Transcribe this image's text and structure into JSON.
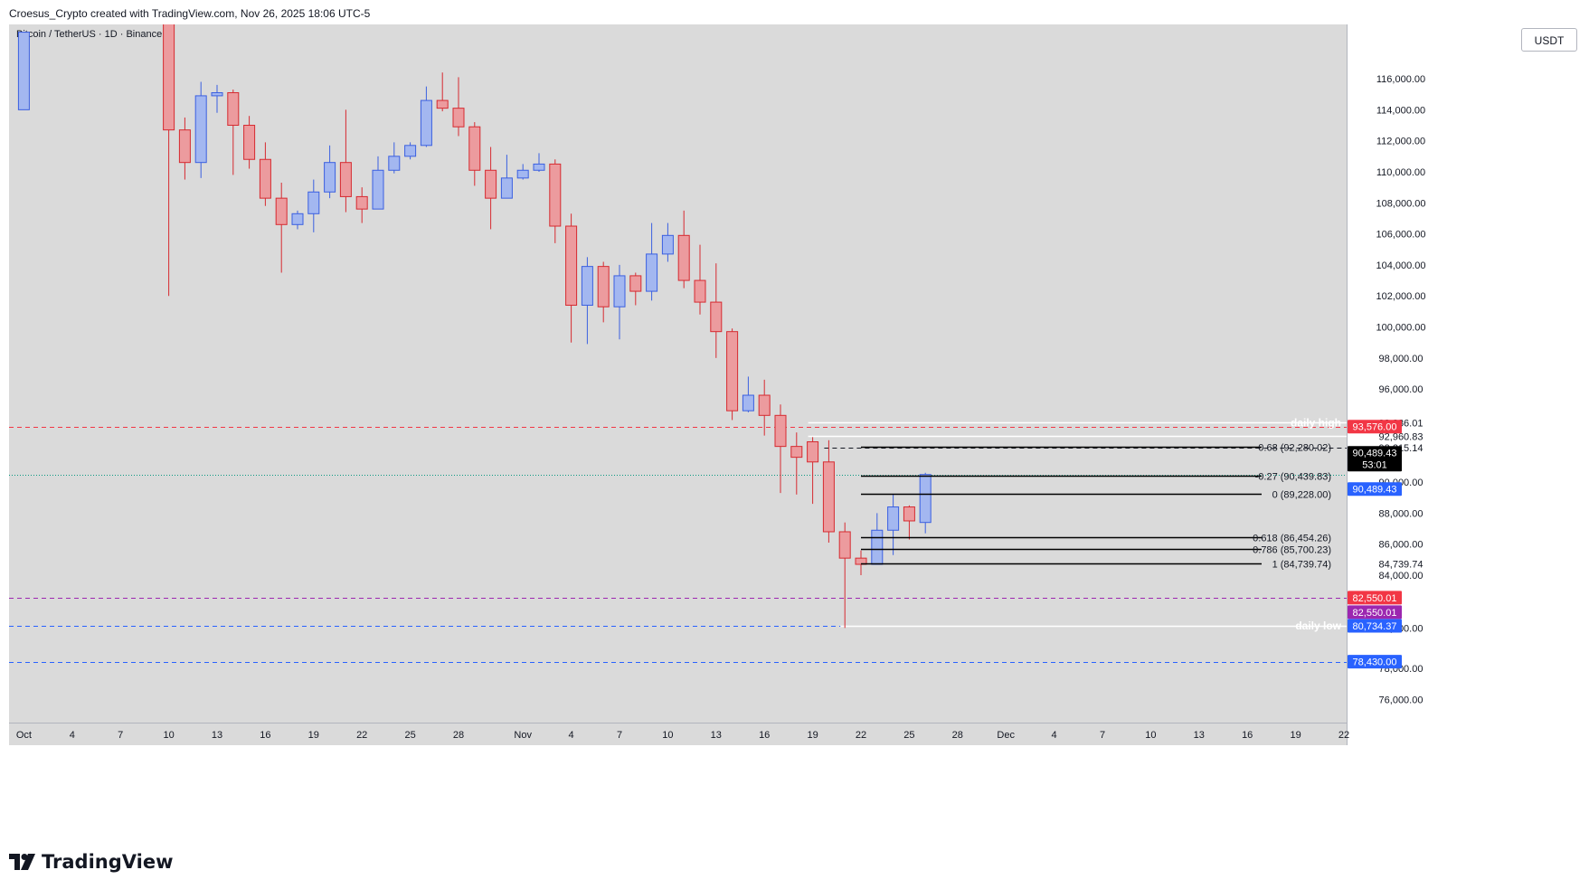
{
  "header": {
    "attribution": "Croesus_Crypto created with TradingView.com, Nov 26, 2025 18:06 UTC-5"
  },
  "symbol": {
    "title": "Bitcoin / TetherUS · 1D · Binance"
  },
  "currency": {
    "label": "USDT"
  },
  "brand": {
    "name": "TradingView"
  },
  "colors": {
    "up": "#a3b7f0",
    "up_border": "#3a5fe0",
    "down": "#ec9b9e",
    "down_border": "#d62a30",
    "background": "#dadada"
  },
  "chart_data": {
    "type": "candlestick",
    "title": "Bitcoin / TetherUS · 1D · Binance",
    "ylim": [
      74500,
      119500
    ],
    "y_ticks": [
      76000,
      78000,
      80600,
      84000,
      86000,
      88000,
      90000,
      92215.14,
      92960.83,
      93836.01,
      96000,
      98000,
      100000,
      102000,
      104000,
      106000,
      108000,
      110000,
      112000,
      114000,
      116000
    ],
    "y_tick_labels": [
      "76,000.00",
      "78,000.00",
      "80,600.00",
      "84,000.00",
      "86,000.00",
      "88,000.00",
      "90,000.00",
      "92,215.14",
      "92,960.83",
      "93,836.01",
      "96,000.00",
      "98,000.00",
      "100,000.00",
      "102,000.00",
      "104,000.00",
      "106,000.00",
      "108,000.00",
      "110,000.00",
      "112,000.00",
      "114,000.00",
      "116,000.00"
    ],
    "x_labels": [
      {
        "day": 1,
        "label": "Oct"
      },
      {
        "day": 4,
        "label": "4"
      },
      {
        "day": 7,
        "label": "7"
      },
      {
        "day": 10,
        "label": "10"
      },
      {
        "day": 13,
        "label": "13"
      },
      {
        "day": 16,
        "label": "16"
      },
      {
        "day": 19,
        "label": "19"
      },
      {
        "day": 22,
        "label": "22"
      },
      {
        "day": 25,
        "label": "25"
      },
      {
        "day": 28,
        "label": "28"
      },
      {
        "day": 32,
        "label": "Nov"
      },
      {
        "day": 35,
        "label": "4"
      },
      {
        "day": 38,
        "label": "7"
      },
      {
        "day": 41,
        "label": "10"
      },
      {
        "day": 44,
        "label": "13"
      },
      {
        "day": 47,
        "label": "16"
      },
      {
        "day": 50,
        "label": "19"
      },
      {
        "day": 53,
        "label": "22"
      },
      {
        "day": 56,
        "label": "25"
      },
      {
        "day": 59,
        "label": "28"
      },
      {
        "day": 62,
        "label": "Dec"
      },
      {
        "day": 65,
        "label": "4"
      },
      {
        "day": 68,
        "label": "7"
      },
      {
        "day": 71,
        "label": "10"
      },
      {
        "day": 74,
        "label": "13"
      },
      {
        "day": 77,
        "label": "16"
      },
      {
        "day": 80,
        "label": "19"
      },
      {
        "day": 83,
        "label": "22"
      }
    ],
    "candles": [
      {
        "day": 1,
        "o": 114000,
        "h": 119000,
        "l": 114000,
        "c": 119000
      },
      {
        "day": 10,
        "o": 121000,
        "h": 122000,
        "l": 102000,
        "c": 112700
      },
      {
        "day": 11,
        "o": 112700,
        "h": 113500,
        "l": 109500,
        "c": 110600
      },
      {
        "day": 12,
        "o": 110600,
        "h": 115800,
        "l": 109600,
        "c": 114900
      },
      {
        "day": 13,
        "o": 114900,
        "h": 115600,
        "l": 113800,
        "c": 115100
      },
      {
        "day": 14,
        "o": 115100,
        "h": 115300,
        "l": 109800,
        "c": 113000
      },
      {
        "day": 15,
        "o": 113000,
        "h": 113600,
        "l": 110200,
        "c": 110800
      },
      {
        "day": 16,
        "o": 110800,
        "h": 111900,
        "l": 107800,
        "c": 108300
      },
      {
        "day": 17,
        "o": 108300,
        "h": 109300,
        "l": 103500,
        "c": 106600
      },
      {
        "day": 18,
        "o": 106600,
        "h": 107500,
        "l": 106300,
        "c": 107300
      },
      {
        "day": 19,
        "o": 107300,
        "h": 109500,
        "l": 106100,
        "c": 108700
      },
      {
        "day": 20,
        "o": 108700,
        "h": 111700,
        "l": 108300,
        "c": 110600
      },
      {
        "day": 21,
        "o": 110600,
        "h": 114000,
        "l": 107400,
        "c": 108400
      },
      {
        "day": 22,
        "o": 108400,
        "h": 109000,
        "l": 106700,
        "c": 107600
      },
      {
        "day": 23,
        "o": 107600,
        "h": 111000,
        "l": 107600,
        "c": 110100
      },
      {
        "day": 24,
        "o": 110100,
        "h": 111900,
        "l": 109900,
        "c": 111000
      },
      {
        "day": 25,
        "o": 111000,
        "h": 111900,
        "l": 110800,
        "c": 111700
      },
      {
        "day": 26,
        "o": 111700,
        "h": 115500,
        "l": 111600,
        "c": 114600
      },
      {
        "day": 27,
        "o": 114600,
        "h": 116400,
        "l": 113900,
        "c": 114100
      },
      {
        "day": 28,
        "o": 114100,
        "h": 116100,
        "l": 112300,
        "c": 112900
      },
      {
        "day": 29,
        "o": 112900,
        "h": 113200,
        "l": 109100,
        "c": 110100
      },
      {
        "day": 30,
        "o": 110100,
        "h": 111600,
        "l": 106300,
        "c": 108300
      },
      {
        "day": 31,
        "o": 108300,
        "h": 111100,
        "l": 108300,
        "c": 109600
      },
      {
        "day": 32,
        "o": 109600,
        "h": 110500,
        "l": 109500,
        "c": 110100
      },
      {
        "day": 33,
        "o": 110100,
        "h": 111200,
        "l": 110000,
        "c": 110500
      },
      {
        "day": 34,
        "o": 110500,
        "h": 110800,
        "l": 105400,
        "c": 106500
      },
      {
        "day": 35,
        "o": 106500,
        "h": 107300,
        "l": 99000,
        "c": 101400
      },
      {
        "day": 36,
        "o": 101400,
        "h": 104500,
        "l": 98900,
        "c": 103900
      },
      {
        "day": 37,
        "o": 103900,
        "h": 104200,
        "l": 100300,
        "c": 101300
      },
      {
        "day": 38,
        "o": 101300,
        "h": 104000,
        "l": 99200,
        "c": 103300
      },
      {
        "day": 39,
        "o": 103300,
        "h": 103500,
        "l": 101400,
        "c": 102300
      },
      {
        "day": 40,
        "o": 102300,
        "h": 106700,
        "l": 101700,
        "c": 104700
      },
      {
        "day": 41,
        "o": 104700,
        "h": 106700,
        "l": 104200,
        "c": 105900
      },
      {
        "day": 42,
        "o": 105900,
        "h": 107500,
        "l": 102500,
        "c": 103000
      },
      {
        "day": 43,
        "o": 103000,
        "h": 105300,
        "l": 100800,
        "c": 101600
      },
      {
        "day": 44,
        "o": 101600,
        "h": 104100,
        "l": 98000,
        "c": 99700
      },
      {
        "day": 45,
        "o": 99700,
        "h": 99900,
        "l": 94000,
        "c": 94600
      },
      {
        "day": 46,
        "o": 94600,
        "h": 96800,
        "l": 94500,
        "c": 95600
      },
      {
        "day": 47,
        "o": 95600,
        "h": 96600,
        "l": 93000,
        "c": 94300
      },
      {
        "day": 48,
        "o": 94300,
        "h": 95000,
        "l": 89300,
        "c": 92300
      },
      {
        "day": 49,
        "o": 92300,
        "h": 93200,
        "l": 89200,
        "c": 91600
      },
      {
        "day": 50,
        "o": 92600,
        "h": 92900,
        "l": 88600,
        "c": 91300
      },
      {
        "day": 51,
        "o": 91300,
        "h": 92700,
        "l": 86100,
        "c": 86800
      },
      {
        "day": 52,
        "o": 86800,
        "h": 87400,
        "l": 80600,
        "c": 85100
      },
      {
        "day": 53,
        "o": 85100,
        "h": 85600,
        "l": 84000,
        "c": 84700
      },
      {
        "day": 54,
        "o": 84700,
        "h": 88000,
        "l": 84700,
        "c": 86900
      },
      {
        "day": 55,
        "o": 86900,
        "h": 89200,
        "l": 85300,
        "c": 88400
      },
      {
        "day": 56,
        "o": 88400,
        "h": 88500,
        "l": 86300,
        "c": 87500
      },
      {
        "day": 57,
        "o": 87400,
        "h": 90600,
        "l": 86700,
        "c": 90489.43
      }
    ],
    "horizontal_lines": [
      {
        "price": 93576.0,
        "color": "#f23645",
        "style": "dashed",
        "from_day": 0
      },
      {
        "price": 82550.01,
        "color": "#9c27b0",
        "style": "dashed",
        "from_day": 0
      },
      {
        "price": 80734.37,
        "color": "#2962ff",
        "style": "dashed",
        "from_day": 0
      },
      {
        "price": 78430.0,
        "color": "#2962ff",
        "style": "dashed",
        "from_day": 0
      },
      {
        "price": 90489.43,
        "color": "#089981",
        "style": "dotted",
        "from_day": 0
      },
      {
        "price": 92215.14,
        "color": "#131722",
        "style": "dashed",
        "from_day": 51
      },
      {
        "price": 92960.83,
        "color": "#ffffff",
        "style": "solid",
        "from_day": 50
      },
      {
        "price": 93836.01,
        "color": "#ffffff",
        "style": "solid",
        "from_day": 50
      },
      {
        "price": 80734.37,
        "color": "#ffffff",
        "style": "solid",
        "from_day": 52
      }
    ],
    "line_labels": [
      {
        "price": 93836.01,
        "text": "daily high"
      },
      {
        "price": 80734.37,
        "text": "daily low"
      }
    ],
    "fib_levels": [
      {
        "label": "-0.68 (92,280.02)",
        "price": 92280.02
      },
      {
        "label": "-0.27 (90,439.83)",
        "price": 90439.83
      },
      {
        "label": "0 (89,228.00)",
        "price": 89228.0
      },
      {
        "label": "0.618 (86,454.26)",
        "price": 86454.26
      },
      {
        "label": "0.786 (85,700.23)",
        "price": 85700.23
      },
      {
        "label": "1 (84,739.74)",
        "price": 84739.74
      }
    ],
    "price_badges": [
      {
        "price": 93576.0,
        "text": "93,576.00",
        "bg": "#f23645"
      },
      {
        "price": 90489.43,
        "text": "90,489.43",
        "bg": "#000000",
        "sub": "53:01"
      },
      {
        "price": 90489.43,
        "text": "90,489.43",
        "bg": "#2962ff"
      },
      {
        "price": 82550.01,
        "text": "82,550.01",
        "bg": "#f23645"
      },
      {
        "price": 82550.01,
        "text": "82,550.01",
        "bg": "#9c27b0"
      },
      {
        "price": 80734.37,
        "text": "80,734.37",
        "bg": "#2962ff"
      },
      {
        "price": 78430.0,
        "text": "78,430.00",
        "bg": "#2962ff"
      }
    ],
    "axis_plain_labels": [
      {
        "price": 84739.74,
        "text": "84,739.74"
      }
    ]
  }
}
